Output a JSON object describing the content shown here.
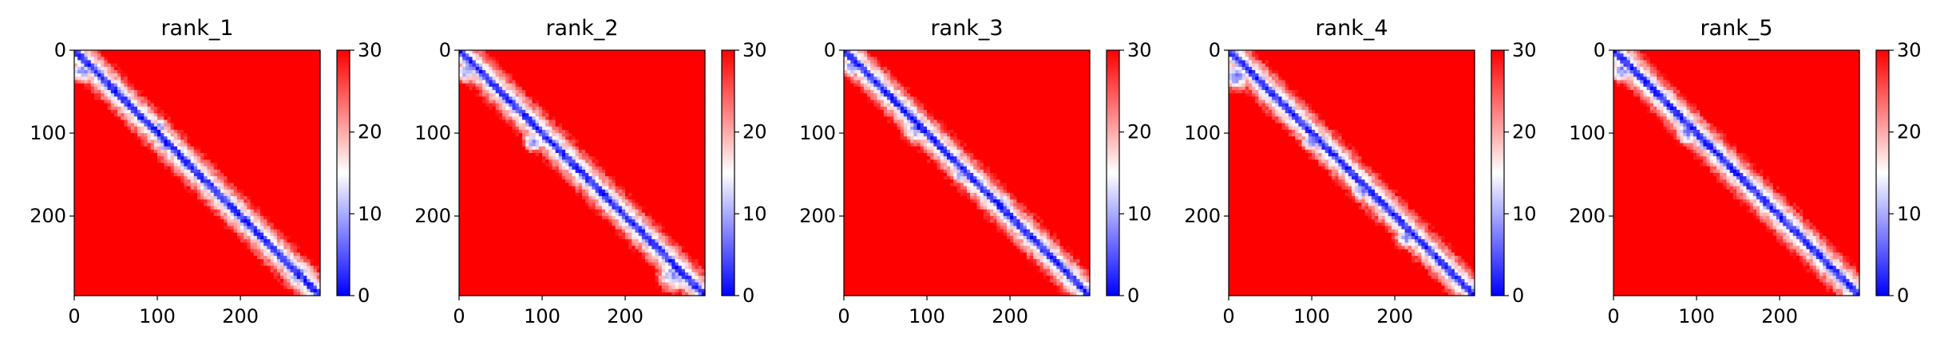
{
  "figure": {
    "colors": {
      "low": "#0000ff",
      "mid": "#ffffff",
      "high": "#ff0000",
      "axis": "#000000"
    }
  },
  "chart_data": [
    {
      "type": "heatmap",
      "title": "rank_1",
      "xlabel": "",
      "ylabel": "",
      "xlim": [
        0,
        296
      ],
      "ylim": [
        296,
        0
      ],
      "x_ticks": [
        "0",
        "100",
        "200"
      ],
      "y_ticks": [
        "0",
        "100",
        "200"
      ],
      "colorbar": {
        "ticks": [
          "0",
          "10",
          "20",
          "30"
        ],
        "range": [
          0,
          30
        ],
        "colormap": "bwr"
      }
    },
    {
      "type": "heatmap",
      "title": "rank_2",
      "xlabel": "",
      "ylabel": "",
      "xlim": [
        0,
        296
      ],
      "ylim": [
        296,
        0
      ],
      "x_ticks": [
        "0",
        "100",
        "200"
      ],
      "y_ticks": [
        "0",
        "100",
        "200"
      ],
      "colorbar": {
        "ticks": [
          "0",
          "10",
          "20",
          "30"
        ],
        "range": [
          0,
          30
        ],
        "colormap": "bwr"
      }
    },
    {
      "type": "heatmap",
      "title": "rank_3",
      "xlabel": "",
      "ylabel": "",
      "xlim": [
        0,
        296
      ],
      "ylim": [
        296,
        0
      ],
      "x_ticks": [
        "0",
        "100",
        "200"
      ],
      "y_ticks": [
        "0",
        "100",
        "200"
      ],
      "colorbar": {
        "ticks": [
          "0",
          "10",
          "20",
          "30"
        ],
        "range": [
          0,
          30
        ],
        "colormap": "bwr"
      }
    },
    {
      "type": "heatmap",
      "title": "rank_4",
      "xlabel": "",
      "ylabel": "",
      "xlim": [
        0,
        296
      ],
      "ylim": [
        296,
        0
      ],
      "x_ticks": [
        "0",
        "100",
        "200"
      ],
      "y_ticks": [
        "0",
        "100",
        "200"
      ],
      "colorbar": {
        "ticks": [
          "0",
          "10",
          "20",
          "30"
        ],
        "range": [
          0,
          30
        ],
        "colormap": "bwr"
      }
    },
    {
      "type": "heatmap",
      "title": "rank_5",
      "xlabel": "",
      "ylabel": "",
      "xlim": [
        0,
        296
      ],
      "ylim": [
        296,
        0
      ],
      "x_ticks": [
        "0",
        "100",
        "200"
      ],
      "y_ticks": [
        "0",
        "100",
        "200"
      ],
      "colorbar": {
        "ticks": [
          "0",
          "10",
          "20",
          "30"
        ],
        "range": [
          0,
          30
        ],
        "colormap": "bwr"
      }
    }
  ]
}
